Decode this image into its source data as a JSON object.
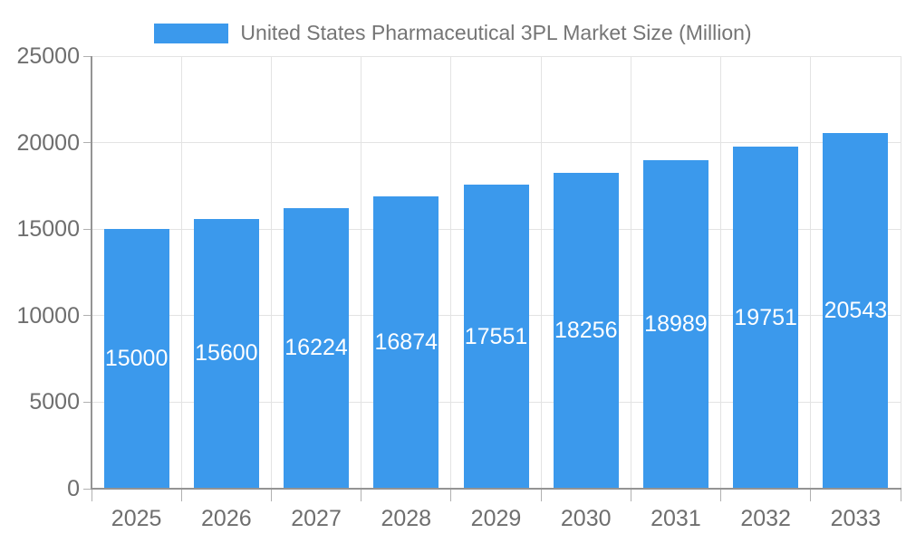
{
  "chart_data": {
    "type": "bar",
    "title": "United States Pharmaceutical 3PL Market Size (Million)",
    "categories": [
      "2025",
      "2026",
      "2027",
      "2028",
      "2029",
      "2030",
      "2031",
      "2032",
      "2033"
    ],
    "values": [
      15000,
      15600,
      16224,
      16874,
      17551,
      18256,
      18989,
      19751,
      20543
    ],
    "yticks": [
      0,
      5000,
      10000,
      15000,
      20000,
      25000
    ],
    "ylim": [
      0,
      25000
    ],
    "xlabel": "",
    "ylabel": "",
    "grid": true,
    "legend_position": "top",
    "value_label_position": "inside-center",
    "colors": {
      "bar": "#3b99ec",
      "gridline": "#e3e3e3",
      "axis_line": "#949494",
      "tick": "#b0b0b0",
      "axis_text": "#6e6e6e",
      "title_text": "#757575",
      "value_label_text": "#ffffff",
      "background": "#ffffff"
    }
  }
}
